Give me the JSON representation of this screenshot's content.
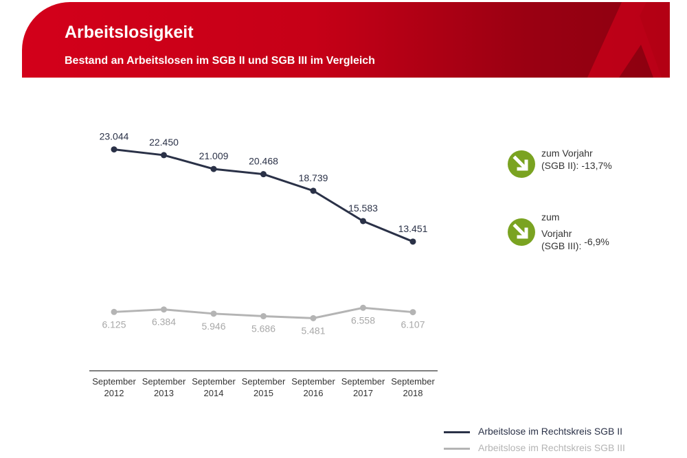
{
  "header": {
    "title": "Arbeitslosigkeit",
    "subtitle": "Bestand an Arbeitslosen im SGB II und SGB III im Vergleich",
    "color": "#d3001a"
  },
  "chart_data": {
    "type": "line",
    "categories": [
      [
        "September",
        "2012"
      ],
      [
        "September",
        "2013"
      ],
      [
        "September",
        "2014"
      ],
      [
        "September",
        "2015"
      ],
      [
        "September",
        "2016"
      ],
      [
        "September",
        "2017"
      ],
      [
        "September",
        "2018"
      ]
    ],
    "series": [
      {
        "name": "Arbeitslose im Rechtskreis SGB II",
        "color": "#2a3147",
        "values": [
          23044,
          22450,
          21009,
          20468,
          18739,
          15583,
          13451
        ],
        "labels": [
          "23.044",
          "22.450",
          "21.009",
          "20.468",
          "18.739",
          "15.583",
          "13.451"
        ]
      },
      {
        "name": "Arbeitslose im Rechtskreis SGB III",
        "color": "#b4b4b4",
        "values": [
          6125,
          6384,
          5946,
          5686,
          5481,
          6558,
          6107
        ],
        "labels": [
          "6.125",
          "6.384",
          "5.946",
          "5.686",
          "5.481",
          "6.558",
          "6.107"
        ]
      }
    ],
    "ylim": [
      0,
      24000
    ],
    "grid": false,
    "legend": "bottom-right"
  },
  "notes": [
    {
      "icon": "arrow-down-right-icon",
      "lines": [
        "zum Vorjahr",
        "(SGB II):"
      ],
      "value": "-13,7%"
    },
    {
      "icon": "arrow-down-right-icon",
      "lines": [
        "zum",
        "Vorjahr",
        "(SGB III):"
      ],
      "value": "-6,9%"
    }
  ],
  "note_color": "#7aa321"
}
